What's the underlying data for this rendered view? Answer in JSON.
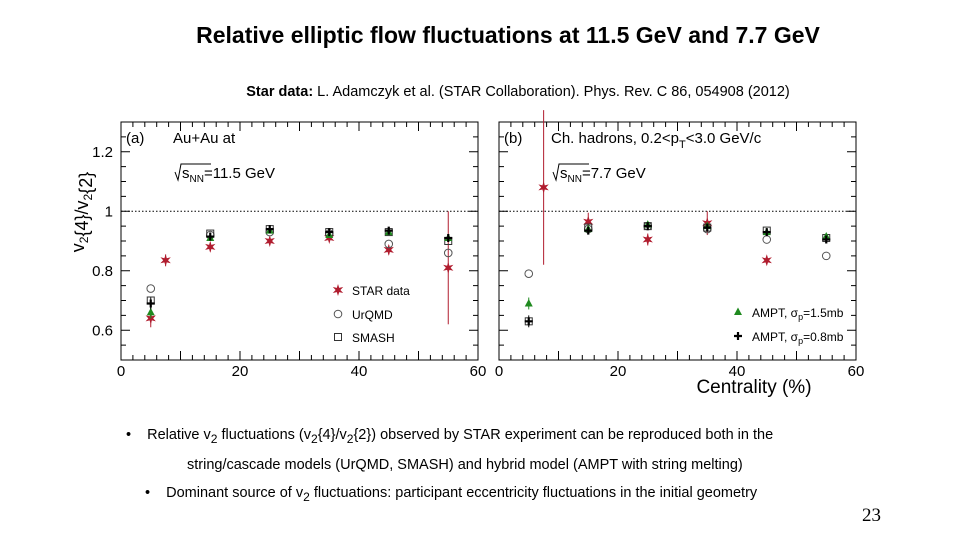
{
  "title": "Relative elliptic flow fluctuations at 11.5 GeV and 7.7 GeV",
  "reference": {
    "label": "Star data:",
    "text": " L. Adamczyk et al. (STAR Collaboration). Phys. Rev. C 86, 054908 (2012)"
  },
  "bullets": [
    {
      "prefix": "Relative v",
      "sub1": "2",
      "mid1": " fluctuations (v",
      "sub2": "2",
      "mid2": "{4}/v",
      "sub3": "2",
      "suffix": "{2}) observed by STAR experiment can be reproduced both in the"
    },
    {
      "text": "string/cascade models (UrQMD, SMASH) and hybrid model (AMPT with string melting)"
    },
    {
      "prefix": "Dominant source of v",
      "sub": "2",
      "suffix": " fluctuations: participant eccentricity fluctuations in the initial geometry"
    }
  ],
  "page_number": "23",
  "chart_data": {
    "type": "scatter",
    "ylabel": "v2{4}/v2{2}",
    "xlabel": "Centrality (%)",
    "xlim": [
      0,
      60
    ],
    "ylim": [
      0.5,
      1.3
    ],
    "y_ticks": [
      "0.6",
      "0.8",
      "1",
      "1.2"
    ],
    "x_ticks": [
      "0",
      "20",
      "40",
      "60"
    ],
    "reference_line": 1,
    "panels": [
      {
        "tag": "(a)",
        "system": "Au+Au at",
        "energy": "=11.5 GeV",
        "series": [
          {
            "name": "STAR data",
            "marker": "star",
            "color": "#b01c2e",
            "x": [
              5,
              7.5,
              15,
              25,
              35,
              45,
              55
            ],
            "y": [
              0.64,
              0.835,
              0.88,
              0.9,
              0.91,
              0.87,
              0.81
            ],
            "err": [
              0.03,
              0.02,
              0.015,
              0.01,
              0.01,
              0.015,
              0.19
            ]
          },
          {
            "name": "UrQMD",
            "marker": "circle",
            "color": "#555555",
            "x": [
              5,
              15,
              25,
              35,
              45,
              55
            ],
            "y": [
              0.74,
              0.92,
              0.93,
              0.925,
              0.89,
              0.86
            ],
            "err": [
              0,
              0,
              0,
              0,
              0,
              0
            ]
          },
          {
            "name": "SMASH",
            "marker": "square",
            "color": "#333333",
            "x": [
              5,
              15,
              25,
              35,
              45,
              55
            ],
            "y": [
              0.7,
              0.925,
              0.94,
              0.93,
              0.93,
              0.9
            ],
            "err": [
              0,
              0,
              0,
              0,
              0,
              0
            ]
          },
          {
            "name": "",
            "marker": "triangle",
            "color": "#1f8a1f",
            "x": [
              5,
              15,
              25,
              35,
              45,
              55
            ],
            "y": [
              0.66,
              0.91,
              0.935,
              0.92,
              0.93,
              0.91
            ],
            "err": [
              0.02,
              0.01,
              0.01,
              0.01,
              0.01,
              0.01
            ]
          },
          {
            "name": "",
            "marker": "cross",
            "color": "#000000",
            "x": [
              5,
              15,
              25,
              35,
              45,
              55
            ],
            "y": [
              0.69,
              0.915,
              0.94,
              0.93,
              0.935,
              0.91
            ],
            "err": [
              0.02,
              0.01,
              0.01,
              0.01,
              0.01,
              0.01
            ]
          }
        ]
      },
      {
        "tag": "(b)",
        "system": "Ch. hadrons, 0.2<p",
        "system_sub": "T",
        "system_tail": "<3.0 GeV/c",
        "energy": "=7.7 GeV",
        "series": [
          {
            "name": "STAR data",
            "marker": "star",
            "color": "#b01c2e",
            "x": [
              7.5,
              15,
              25,
              35,
              45
            ],
            "y": [
              1.08,
              0.965,
              0.905,
              0.96,
              0.835
            ],
            "err": [
              0.26,
              0.03,
              0.02,
              0.04,
              0
            ]
          },
          {
            "name": "UrQMD",
            "marker": "circle",
            "color": "#555555",
            "x": [
              5,
              15,
              25,
              35,
              45,
              55
            ],
            "y": [
              0.79,
              0.94,
              0.95,
              0.94,
              0.905,
              0.85
            ],
            "err": [
              0,
              0,
              0,
              0,
              0,
              0
            ]
          },
          {
            "name": "SMASH",
            "marker": "square",
            "color": "#333333",
            "x": [
              5,
              15,
              25,
              35,
              45,
              55
            ],
            "y": [
              0.63,
              0.945,
              0.95,
              0.945,
              0.935,
              0.91
            ],
            "err": [
              0,
              0,
              0,
              0,
              0,
              0
            ]
          },
          {
            "name": "AMPT, σp=1.5mb",
            "marker": "triangle",
            "color": "#1f8a1f",
            "x": [
              5,
              15,
              25,
              35,
              45,
              55
            ],
            "y": [
              0.69,
              0.94,
              0.955,
              0.95,
              0.93,
              0.915
            ],
            "err": [
              0.02,
              0.01,
              0.01,
              0.01,
              0.01,
              0.01
            ]
          },
          {
            "name": "AMPT, σp=0.8mb",
            "marker": "cross",
            "color": "#000000",
            "x": [
              5,
              15,
              25,
              35,
              45,
              55
            ],
            "y": [
              0.63,
              0.935,
              0.95,
              0.945,
              0.93,
              0.905
            ],
            "err": [
              0.02,
              0.01,
              0.01,
              0.01,
              0.01,
              0.01
            ]
          }
        ]
      }
    ]
  }
}
